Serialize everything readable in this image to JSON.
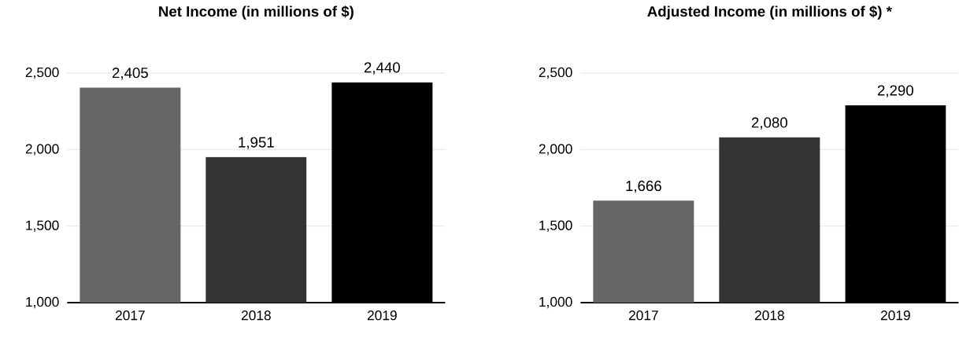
{
  "chart_data": [
    {
      "type": "bar",
      "title": "Net Income (in millions of $)",
      "categories": [
        "2017",
        "2018",
        "2019"
      ],
      "values": [
        2405,
        1951,
        2440
      ],
      "colors": [
        "#666666",
        "#333333",
        "#000000"
      ],
      "value_labels": [
        "2,405",
        "1,951",
        "2,440"
      ],
      "ylim": [
        1000,
        2500
      ],
      "yticks": [
        {
          "value": 1000,
          "label": "1,000"
        },
        {
          "value": 1500,
          "label": "1,500"
        },
        {
          "value": 2000,
          "label": "2,000"
        },
        {
          "value": 2500,
          "label": "2,500"
        }
      ],
      "grid": "y"
    },
    {
      "type": "bar",
      "title": "Adjusted Income (in millions of $) *",
      "categories": [
        "2017",
        "2018",
        "2019"
      ],
      "values": [
        1666,
        2080,
        2290
      ],
      "colors": [
        "#666666",
        "#333333",
        "#000000"
      ],
      "value_labels": [
        "1,666",
        "2,080",
        "2,290"
      ],
      "ylim": [
        1000,
        2500
      ],
      "yticks": [
        {
          "value": 1000,
          "label": "1,000"
        },
        {
          "value": 1500,
          "label": "1,500"
        },
        {
          "value": 2000,
          "label": "2,000"
        },
        {
          "value": 2500,
          "label": "2,500"
        }
      ],
      "grid": "y"
    }
  ]
}
